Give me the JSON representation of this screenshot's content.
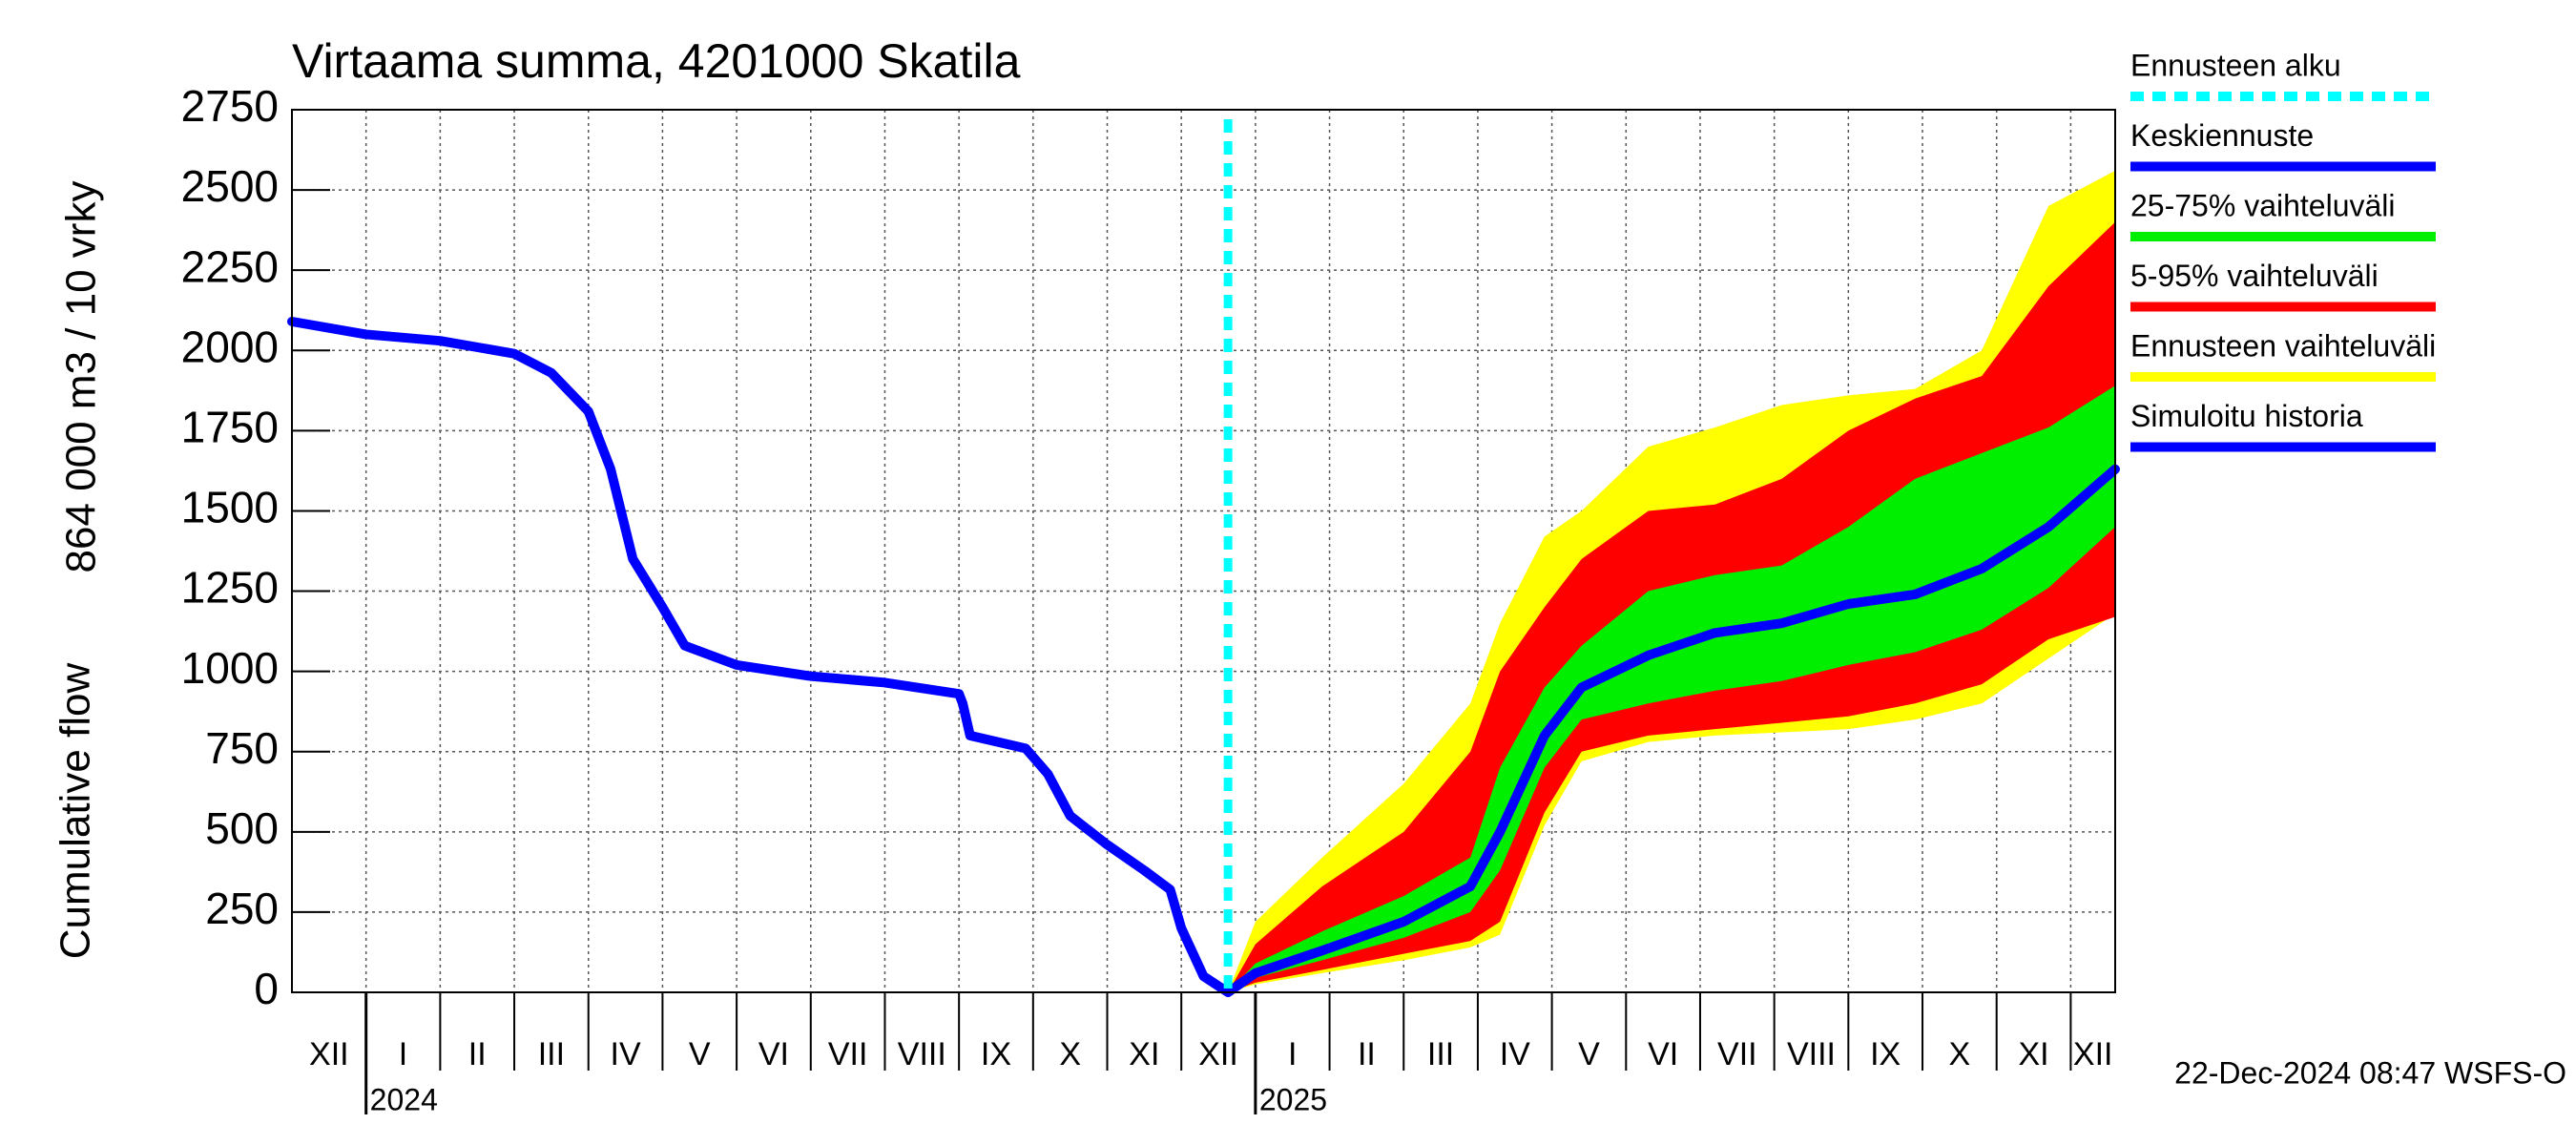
{
  "chart_data": {
    "type": "line",
    "title": "Virtaama summa, 4201000 Skatila",
    "y_label_unit": "864 000 m3 / 10 vrky",
    "y_label": "Cumulative flow",
    "categories": [
      "XII",
      "I",
      "II",
      "III",
      "IV",
      "V",
      "VI",
      "VII",
      "VIII",
      "IX",
      "X",
      "XI",
      "XII",
      "I",
      "II",
      "III",
      "IV",
      "V",
      "VI",
      "VII",
      "VIII",
      "IX",
      "X",
      "XI",
      "XII"
    ],
    "years": [
      "2024",
      "2025"
    ],
    "xlim": [
      0,
      24.6
    ],
    "ylim": [
      0,
      2750
    ],
    "yticks": [
      0,
      250,
      500,
      750,
      1000,
      1250,
      1500,
      1750,
      2000,
      2250,
      2500,
      2750
    ],
    "grid": true,
    "forecast_start": 12.63,
    "forecast_start_label": "Ennusteen alku",
    "forecast_start_color": "#00ffff",
    "forecast_x": [
      12.63,
      13,
      13.9,
      15,
      15.9,
      16.3,
      16.9,
      17.4,
      18.3,
      19.2,
      20.1,
      21,
      21.9,
      22.8,
      23.7,
      24.6
    ],
    "bands": [
      {
        "name": "Ennusteen vaihteluväli",
        "color": "#ffff00",
        "lower": [
          0,
          25,
          60,
          100,
          140,
          180,
          520,
          720,
          780,
          800,
          810,
          820,
          850,
          900,
          1040,
          1180
        ],
        "upper": [
          0,
          220,
          420,
          650,
          900,
          1150,
          1420,
          1500,
          1700,
          1760,
          1830,
          1860,
          1880,
          2000,
          2450,
          2560
        ]
      },
      {
        "name": "5-95% vaihteluväli",
        "color": "#ff0000",
        "lower": [
          0,
          30,
          70,
          120,
          160,
          220,
          560,
          750,
          800,
          820,
          840,
          860,
          900,
          960,
          1100,
          1170
        ],
        "upper": [
          0,
          150,
          330,
          500,
          750,
          1000,
          1200,
          1350,
          1500,
          1520,
          1600,
          1750,
          1850,
          1920,
          2200,
          2400
        ]
      },
      {
        "name": "25-75% vaihteluväli",
        "color": "#00ee00",
        "lower": [
          0,
          45,
          100,
          170,
          250,
          380,
          700,
          850,
          900,
          940,
          970,
          1020,
          1060,
          1130,
          1260,
          1450
        ],
        "upper": [
          0,
          90,
          190,
          300,
          420,
          700,
          950,
          1080,
          1250,
          1300,
          1330,
          1450,
          1600,
          1680,
          1760,
          1890
        ]
      }
    ],
    "series": [
      {
        "name": "Keskiennuste",
        "color": "#0000ff",
        "x": [
          12.63,
          13,
          13.9,
          15,
          15.9,
          16.3,
          16.9,
          17.4,
          18.3,
          19.2,
          20.1,
          21,
          21.9,
          22.8,
          23.7,
          24.6
        ],
        "values": [
          0,
          60,
          130,
          220,
          330,
          500,
          800,
          950,
          1050,
          1120,
          1150,
          1210,
          1240,
          1320,
          1450,
          1630
        ]
      },
      {
        "name": "Simuloitu historia",
        "color": "#0000ff",
        "x": [
          0,
          1,
          2,
          3,
          3.5,
          4,
          4.3,
          4.6,
          5,
          5.3,
          6,
          7,
          8,
          9,
          9.05,
          9.15,
          9.9,
          10.2,
          10.5,
          11,
          11.5,
          11.85,
          12,
          12.3,
          12.63
        ],
        "values": [
          2090,
          2050,
          2030,
          1990,
          1930,
          1810,
          1630,
          1350,
          1200,
          1080,
          1020,
          985,
          965,
          930,
          900,
          800,
          760,
          680,
          550,
          460,
          380,
          320,
          200,
          50,
          0
        ]
      }
    ],
    "timestamp": "22-Dec-2024 08:47 WSFS-O"
  }
}
